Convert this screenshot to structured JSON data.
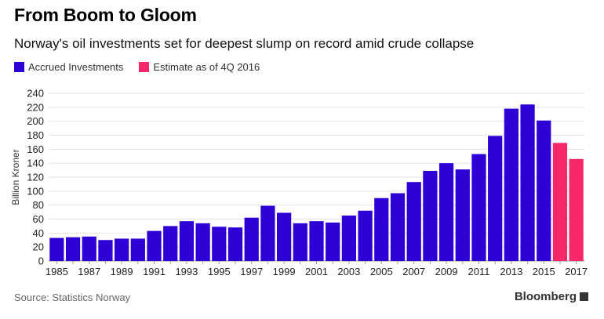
{
  "header": {
    "title": "From Boom to Gloom",
    "subtitle": "Norway's oil investments set for deepest slump on record amid crude collapse"
  },
  "footer": {
    "source": "Source: Statistics Norway",
    "brand": "Bloomberg"
  },
  "colors": {
    "accrued": "#2f00d6",
    "estimate": "#f7276a",
    "grid": "#e3e3e3"
  },
  "chart_data": {
    "type": "bar",
    "title": "From Boom to Gloom",
    "subtitle": "Norway's oil investments set for deepest slump on record amid crude collapse",
    "xlabel": "",
    "ylabel": "Billion Kroner",
    "ylim": [
      0,
      240
    ],
    "yticks": [
      0,
      20,
      40,
      60,
      80,
      100,
      120,
      140,
      160,
      180,
      200,
      220,
      240
    ],
    "grid": true,
    "legend_placement": "top-left",
    "legend": [
      "Accrued Investments",
      "Estimate as of 4Q 2016"
    ],
    "categories": [
      "1985",
      "1986",
      "1987",
      "1988",
      "1989",
      "1990",
      "1991",
      "1992",
      "1993",
      "1994",
      "1995",
      "1996",
      "1997",
      "1998",
      "1999",
      "2000",
      "2001",
      "2002",
      "2003",
      "2004",
      "2005",
      "2006",
      "2007",
      "2008",
      "2009",
      "2010",
      "2011",
      "2012",
      "2013",
      "2014",
      "2015",
      "2016",
      "2017"
    ],
    "xtick_labels": [
      "1985",
      "1987",
      "1989",
      "1991",
      "1993",
      "1995",
      "1997",
      "1999",
      "2001",
      "2003",
      "2005",
      "2007",
      "2009",
      "2011",
      "2013",
      "2015",
      "2017"
    ],
    "series": [
      {
        "name": "Accrued Investments",
        "values": [
          33,
          34,
          35,
          30,
          32,
          32,
          43,
          50,
          57,
          54,
          49,
          48,
          62,
          79,
          69,
          54,
          57,
          55,
          65,
          72,
          90,
          97,
          113,
          129,
          140,
          131,
          153,
          179,
          218,
          224,
          201,
          null,
          null
        ]
      },
      {
        "name": "Estimate as of 4Q 2016",
        "values": [
          null,
          null,
          null,
          null,
          null,
          null,
          null,
          null,
          null,
          null,
          null,
          null,
          null,
          null,
          null,
          null,
          null,
          null,
          null,
          null,
          null,
          null,
          null,
          null,
          null,
          null,
          null,
          null,
          null,
          null,
          null,
          169,
          146
        ]
      }
    ]
  }
}
